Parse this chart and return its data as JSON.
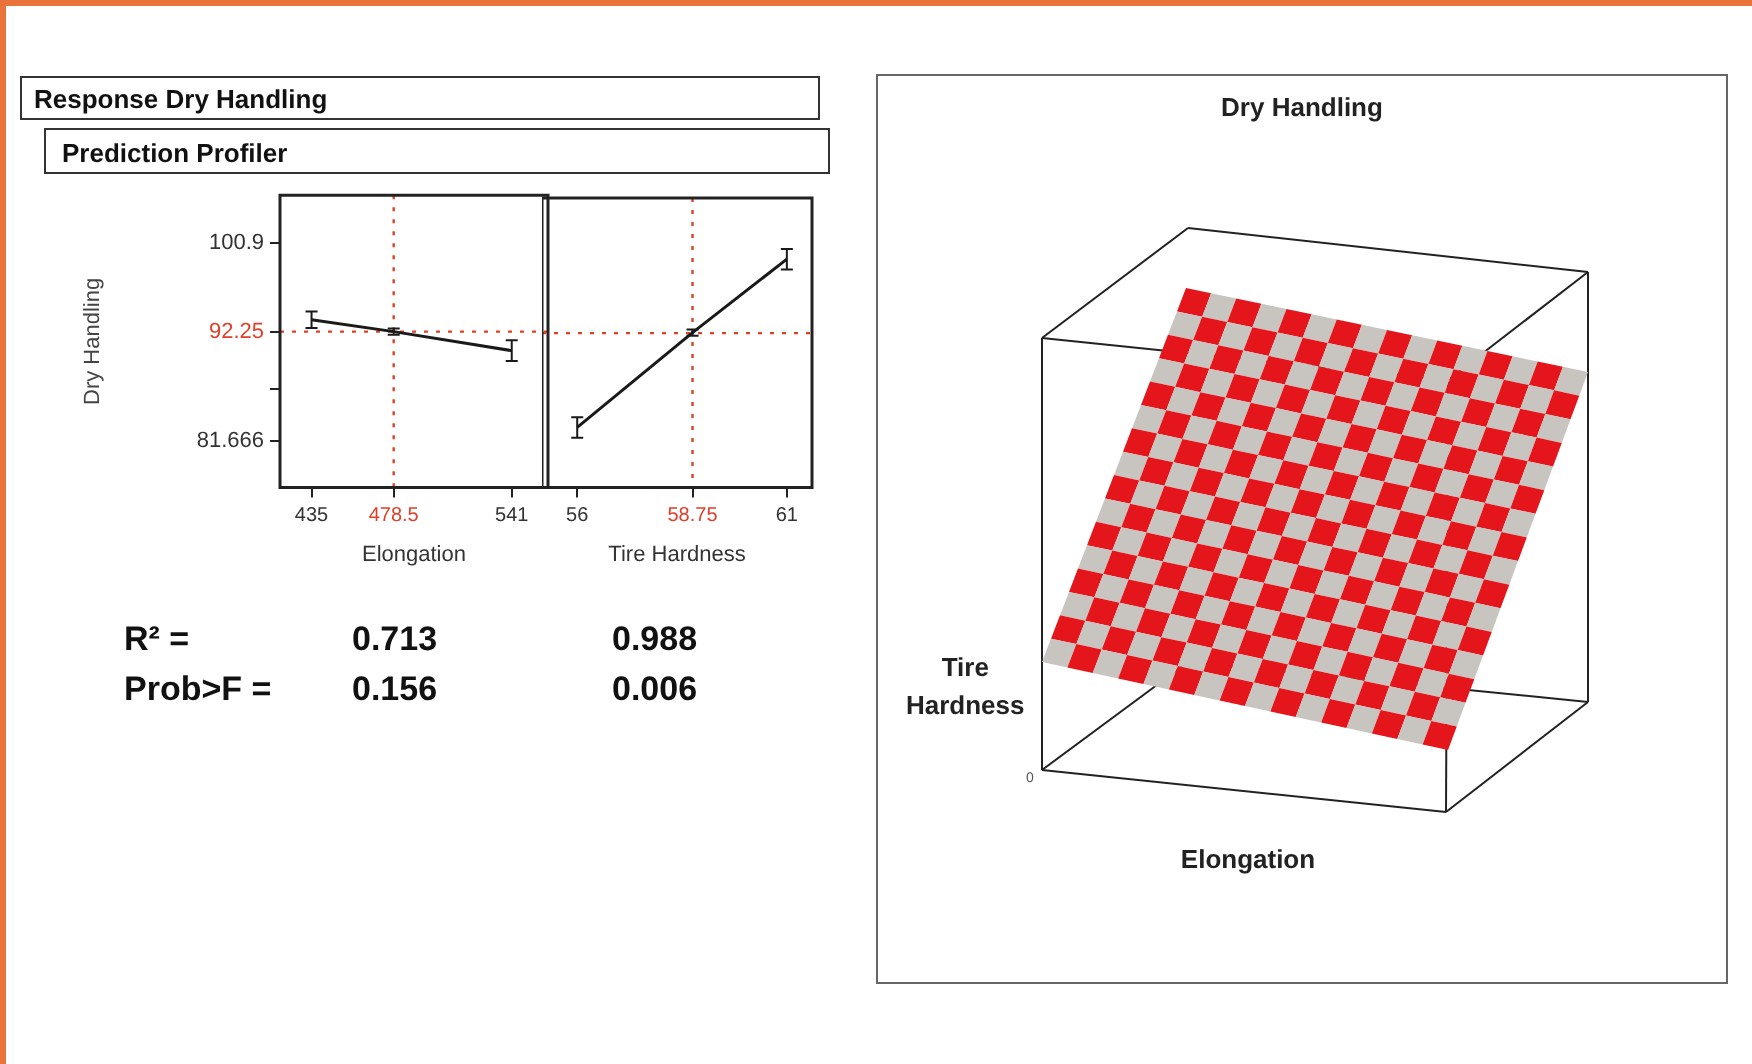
{
  "chart_data": [
    {
      "type": "line",
      "title": "Response Dry Handling",
      "subtitle": "Prediction Profiler",
      "ylabel": "Dry Handling",
      "xlabel": "Elongation",
      "x": [
        435,
        478.5,
        541
      ],
      "series": [
        {
          "color": "#1a1a1a",
          "values": [
            93.4,
            92.25,
            90.4
          ],
          "errors": [
            0.8,
            0.3,
            1.0
          ]
        }
      ],
      "xlim": [
        418.3,
        560.2
      ],
      "xticks": [
        435,
        478.5,
        541
      ],
      "ylim": [
        77.1,
        105.5
      ],
      "yticks": [
        81.666,
        {
          "value": 86.65,
          "label": null
        },
        92.25,
        100.9
      ],
      "ref_lines": [
        {
          "axis": "x",
          "value": 478.5,
          "color": "#e0402a",
          "line_style": "dotted"
        },
        {
          "axis": "y",
          "value": 92.25,
          "color": "#e0402a",
          "line_style": "dotted"
        }
      ],
      "marker": "none",
      "grid": false,
      "legend": false,
      "annotations": [
        "R² =",
        "0.713",
        "Prob>F =",
        "0.156"
      ]
    },
    {
      "type": "line",
      "xlabel": "Tire Hardness",
      "x": [
        56,
        58.75,
        61
      ],
      "series": [
        {
          "color": "#1a1a1a",
          "values": [
            83.0,
            92.3,
            99.5
          ],
          "errors": [
            1.0,
            0.3,
            1.0
          ]
        }
      ],
      "xlim": [
        55.16,
        61.6
      ],
      "xticks": [
        56,
        58.75,
        61
      ],
      "ylim": [
        77.1,
        105.5
      ],
      "yticks": [
        81.666,
        92.25,
        100.9
      ],
      "ref_lines": [
        {
          "axis": "x",
          "value": 58.75,
          "color": "#e0402a",
          "line_style": "dotted"
        },
        {
          "axis": "y",
          "value": 92.25,
          "color": "#e0402a",
          "line_style": "dotted"
        }
      ],
      "marker": "none",
      "grid": false,
      "legend": false,
      "tick_labels": "x",
      "annotations": [
        "0.988",
        "0.006"
      ]
    },
    {
      "type": "other",
      "title": "Dry Handling",
      "xlabel": "Elongation",
      "ylabel": "Tire Hardness",
      "annotations": [
        "0"
      ]
    }
  ]
}
